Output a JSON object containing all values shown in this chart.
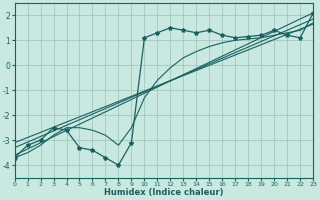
{
  "xlabel": "Humidex (Indice chaleur)",
  "bg_color": "#c8e8e0",
  "grid_color": "#98c4bc",
  "line_color": "#1a6060",
  "xlim": [
    0,
    23
  ],
  "ylim": [
    -4.5,
    2.5
  ],
  "xticks": [
    0,
    1,
    2,
    3,
    4,
    5,
    6,
    7,
    8,
    9,
    10,
    11,
    12,
    13,
    14,
    15,
    16,
    17,
    18,
    19,
    20,
    21,
    22,
    23
  ],
  "yticks": [
    -4,
    -3,
    -2,
    -1,
    0,
    1,
    2
  ],
  "main_x": [
    0,
    1,
    2,
    3,
    4,
    5,
    6,
    7,
    8,
    9,
    10,
    11,
    12,
    13,
    14,
    15,
    16,
    17,
    18,
    19,
    20,
    21,
    22,
    23
  ],
  "main_y": [
    -3.7,
    -3.2,
    -3.0,
    -2.5,
    -2.6,
    -3.3,
    -3.4,
    -3.7,
    -4.0,
    -3.1,
    1.1,
    1.3,
    1.5,
    1.4,
    1.3,
    1.4,
    1.2,
    1.1,
    1.15,
    1.2,
    1.4,
    1.2,
    1.1,
    2.1
  ],
  "smooth_x": [
    0,
    1,
    2,
    3,
    4,
    5,
    6,
    7,
    8,
    9,
    10,
    11,
    12,
    13,
    14,
    15,
    16,
    17,
    18,
    19,
    20,
    21,
    22,
    23
  ],
  "smooth_y": [
    -3.7,
    -3.5,
    -3.2,
    -2.8,
    -2.5,
    -2.5,
    -2.6,
    -2.8,
    -3.2,
    -2.5,
    -1.3,
    -0.6,
    -0.1,
    0.3,
    0.55,
    0.75,
    0.9,
    1.0,
    1.05,
    1.1,
    1.2,
    1.3,
    1.4,
    1.7
  ],
  "line1_x": [
    0,
    23
  ],
  "line1_y": [
    -3.6,
    2.1
  ],
  "line2_x": [
    0,
    23
  ],
  "line2_y": [
    -3.3,
    1.85
  ],
  "line3_x": [
    0,
    23
  ],
  "line3_y": [
    -3.1,
    1.65
  ]
}
